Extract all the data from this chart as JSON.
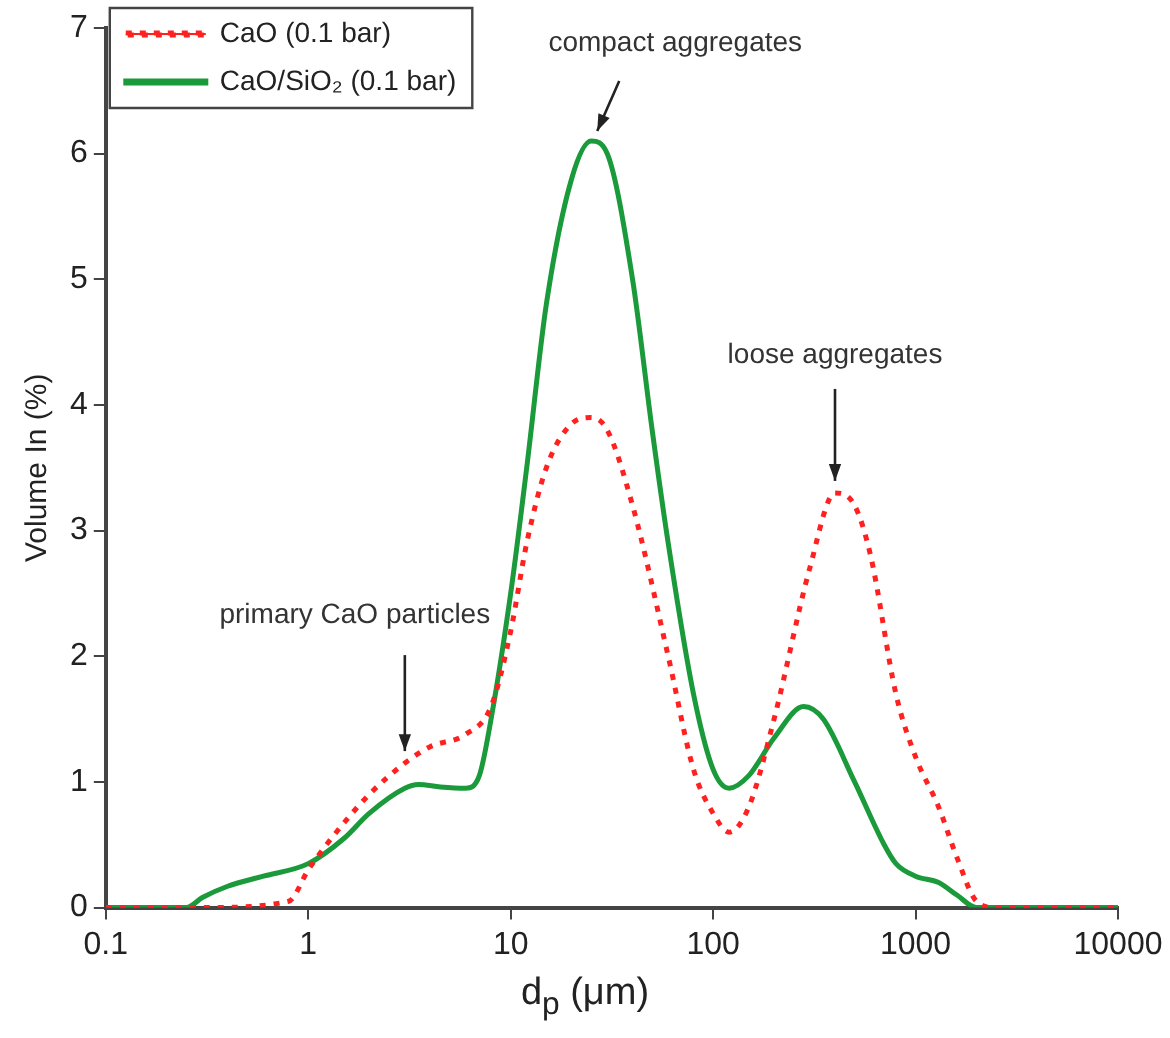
{
  "chart_data": {
    "type": "line",
    "xlabel": "d$_{p}$ (μm)",
    "ylabel": "Volume In (%)",
    "log": "x",
    "grid": false,
    "legend": "top left",
    "marker": "none",
    "xlim": [
      0.1,
      10000
    ],
    "xticks": [
      0.1,
      1,
      10,
      100,
      1000,
      10000
    ],
    "ylim": [
      0,
      7
    ],
    "yticks": [
      0,
      1,
      2,
      3,
      4,
      5,
      6,
      7
    ],
    "annotations": [
      {
        "text": "primary CaO particles",
        "x": 3,
        "y": 1.15
      },
      {
        "text": "compact aggregates",
        "x": 25,
        "y": 6.1
      },
      {
        "text": "loose aggregates",
        "x": 400,
        "y": 3.3
      }
    ],
    "series": [
      {
        "name": "CaO (0.1 bar)",
        "color": "#ff2020",
        "line_style": "dotted",
        "x": [
          0.1,
          0.3,
          0.8,
          1,
          1.3,
          2,
          3,
          4,
          6,
          8,
          10,
          12,
          15,
          20,
          25,
          30,
          40,
          60,
          80,
          100,
          120,
          150,
          200,
          300,
          400,
          500,
          600,
          800,
          1000,
          1300,
          1600,
          2000,
          2500,
          10000
        ],
        "values": [
          0,
          0,
          0.05,
          0.3,
          0.55,
          0.9,
          1.15,
          1.28,
          1.38,
          1.6,
          2.2,
          2.9,
          3.5,
          3.85,
          3.9,
          3.8,
          3.2,
          2.0,
          1.1,
          0.75,
          0.6,
          0.8,
          1.5,
          2.7,
          3.3,
          3.2,
          2.8,
          1.7,
          1.2,
          0.8,
          0.4,
          0.05,
          0,
          0
        ]
      },
      {
        "name": "CaO/SiO₂ (0.1 bar)",
        "color": "#1a9a3a",
        "line_style": "solid",
        "x": [
          0.1,
          0.25,
          0.3,
          0.4,
          0.6,
          1,
          1.5,
          2,
          3,
          3.5,
          4.5,
          6,
          7,
          8,
          10,
          12,
          15,
          20,
          25,
          30,
          40,
          50,
          60,
          80,
          100,
          120,
          150,
          200,
          280,
          350,
          500,
          700,
          800,
          1000,
          1300,
          1600,
          2000,
          10000
        ],
        "values": [
          0,
          0,
          0.08,
          0.17,
          0.25,
          0.35,
          0.55,
          0.75,
          0.95,
          0.98,
          0.96,
          0.95,
          1.05,
          1.5,
          2.5,
          3.5,
          4.8,
          5.8,
          6.1,
          6.0,
          5.0,
          3.8,
          2.9,
          1.7,
          1.1,
          0.95,
          1.05,
          1.35,
          1.6,
          1.5,
          1.0,
          0.5,
          0.35,
          0.25,
          0.2,
          0.1,
          0,
          0
        ]
      }
    ]
  }
}
